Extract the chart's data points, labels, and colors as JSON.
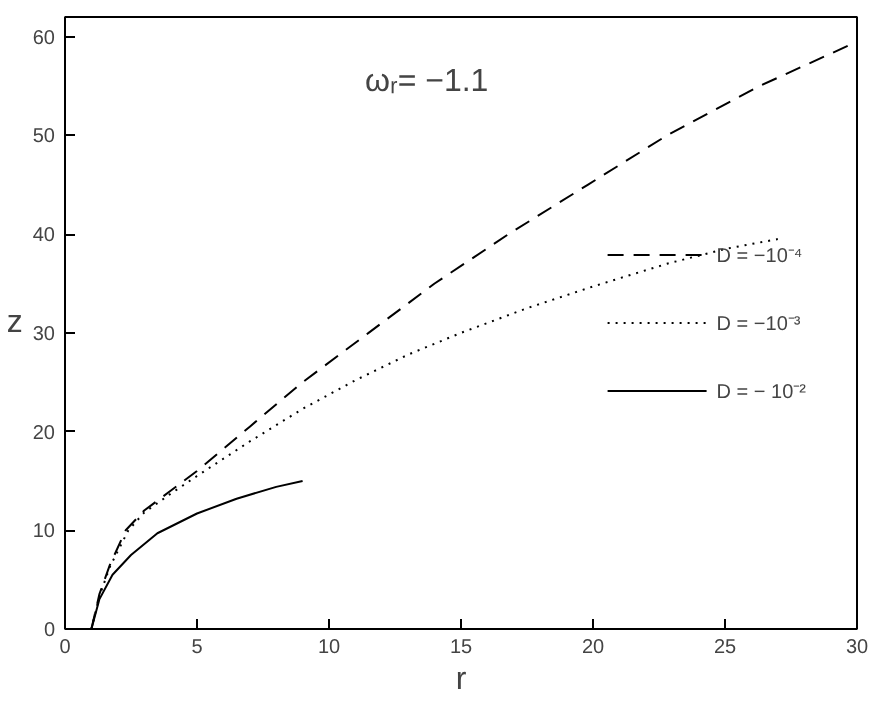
{
  "chart_data": {
    "type": "line",
    "xlabel": "r",
    "ylabel": "z",
    "annotations": [
      "ωᵣ= −1.1"
    ],
    "xlim": [
      0,
      30
    ],
    "ylim": [
      0,
      62
    ],
    "xticks": [
      0,
      5,
      10,
      15,
      20,
      25,
      30
    ],
    "yticks": [
      0,
      10,
      20,
      30,
      40,
      50,
      60
    ],
    "grid": false,
    "legend": "right",
    "series": [
      {
        "name": "D = −10⁻⁴",
        "color": "#000000",
        "line_style": "dashed",
        "x": [
          1,
          1.3,
          1.7,
          2.3,
          3,
          4,
          5,
          7,
          9,
          11.5,
          14,
          16.8,
          19.8,
          22.8,
          26.3,
          30
        ],
        "values": [
          0,
          3.5,
          6.5,
          10,
          12,
          14,
          16,
          20.5,
          25,
          30,
          35,
          40,
          45,
          50,
          55,
          59.5
        ]
      },
      {
        "name": "D = −10⁻³",
        "color": "#000000",
        "line_style": "dotted",
        "x": [
          1,
          1.3,
          1.7,
          2.4,
          3,
          4,
          5,
          7,
          9,
          11,
          13,
          15,
          17.5,
          20,
          22.8,
          25,
          27
        ],
        "values": [
          0,
          3.3,
          6.3,
          10,
          11.8,
          13.7,
          15.5,
          19,
          22.3,
          25.2,
          27.8,
          30,
          32.5,
          34.7,
          37,
          38.5,
          39.5
        ]
      },
      {
        "name": "D = − 10⁻²",
        "color": "#000000",
        "line_style": "solid",
        "x": [
          1,
          1.3,
          1.8,
          2.5,
          3.5,
          5,
          6.5,
          8,
          9
        ],
        "values": [
          0,
          3,
          5.5,
          7.5,
          9.7,
          11.7,
          13.2,
          14.4,
          15
        ]
      }
    ]
  }
}
